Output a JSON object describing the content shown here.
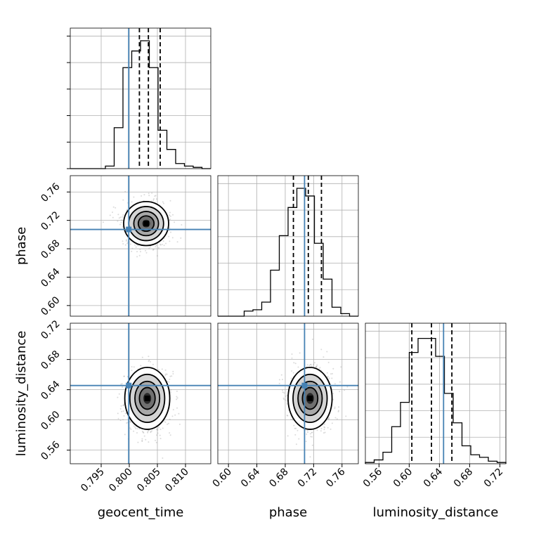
{
  "chart_data": {
    "type": "corner",
    "parameters": [
      "geocent_time",
      "phase",
      "luminosity_distance"
    ],
    "axis_labels": {
      "x": [
        "geocent_time",
        "phase",
        "luminosity_distance"
      ],
      "y": [
        "",
        "phase",
        "luminosity_distance"
      ]
    },
    "ranges": {
      "geocent_time": [
        0.7895,
        0.8145
      ],
      "phase": [
        0.585,
        0.783
      ],
      "luminosity_distance": [
        0.542,
        0.728
      ]
    },
    "ticks": {
      "geocent_time": [
        "0.795",
        "0.800",
        "0.805",
        "0.810"
      ],
      "phase": [
        "0.60",
        "0.64",
        "0.68",
        "0.72",
        "0.76"
      ],
      "luminosity_distance": [
        "0.56",
        "0.60",
        "0.64",
        "0.68",
        "0.72"
      ]
    },
    "truths": {
      "geocent_time": 0.7999,
      "phase": 0.7072,
      "luminosity_distance": 0.6455
    },
    "quantiles": {
      "geocent_time": [
        0.8018,
        0.8034,
        0.8055
      ],
      "phase": [
        0.6915,
        0.7125,
        0.731
      ],
      "luminosity_distance": [
        0.6035,
        0.6295,
        0.6565
      ]
    },
    "histograms": {
      "geocent_time": [
        0,
        0,
        0,
        0,
        0.02,
        0.32,
        0.79,
        0.92,
        1.0,
        0.79,
        0.3,
        0.15,
        0.04,
        0.02,
        0.01,
        0
      ],
      "phase": [
        0,
        0,
        0,
        0.04,
        0.05,
        0.11,
        0.36,
        0.63,
        0.85,
        1.0,
        0.94,
        0.57,
        0.29,
        0.07,
        0.02,
        0
      ],
      "luminosity_distance": [
        0.01,
        0.03,
        0.09,
        0.29,
        0.48,
        0.87,
        0.98,
        0.98,
        0.84,
        0.55,
        0.32,
        0.14,
        0.07,
        0.05,
        0.02,
        0.01
      ]
    },
    "density_centers": {
      "geocent_time|phase": [
        0.803,
        0.7155
      ],
      "geocent_time|luminosity_distance": [
        0.8032,
        0.6285
      ],
      "phase|luminosity_distance": [
        0.715,
        0.6285
      ]
    },
    "grid": true,
    "colors": {
      "truth": "#4682b4",
      "lines": "#000000",
      "points": "#999999"
    }
  }
}
